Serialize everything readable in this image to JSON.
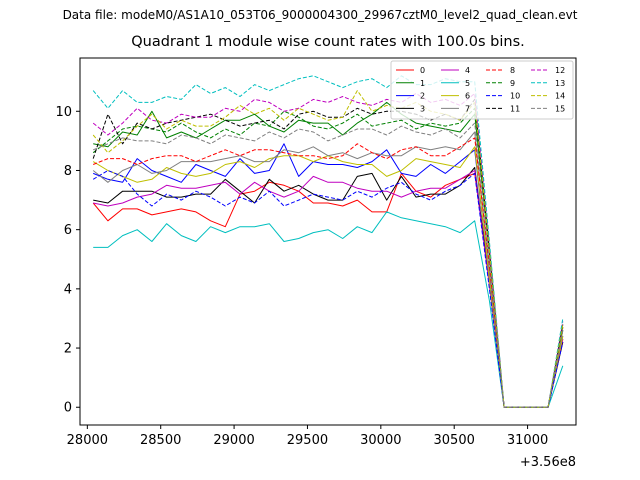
{
  "figure": {
    "suptitle": "Data file: modeM0/AS1A10_053T06_9000004300_29967cztM0_level2_quad_clean.evt"
  },
  "chart_data": {
    "type": "line",
    "title": "Quadrant 1 module wise count rates with 100.0s bins.",
    "xlabel": "",
    "ylabel": "",
    "x_offset_label": "+3.56e8",
    "x": [
      28040,
      28140,
      28240,
      28340,
      28440,
      28540,
      28640,
      28740,
      28840,
      28940,
      29040,
      29140,
      29240,
      29340,
      29440,
      29540,
      29640,
      29740,
      29840,
      29940,
      30040,
      30140,
      30240,
      30340,
      30440,
      30540,
      30640,
      30740,
      30840,
      30940,
      31040,
      31140,
      31240
    ],
    "xlim": [
      27950,
      31330
    ],
    "ylim": [
      -0.6,
      11.8
    ],
    "xticks": [
      28000,
      28500,
      29000,
      29500,
      30000,
      30500,
      31000
    ],
    "xtick_labels": [
      "28000",
      "28500",
      "29000",
      "29500",
      "30000",
      "30500",
      "31000"
    ],
    "yticks": [
      0,
      2,
      4,
      6,
      8,
      10
    ],
    "ytick_labels": [
      "0",
      "2",
      "4",
      "6",
      "8",
      "10"
    ],
    "grid": false,
    "legend_placement": "top-right",
    "series": [
      {
        "name": "0",
        "color": "#ff0000",
        "dash": "solid",
        "values": [
          6.9,
          6.3,
          6.7,
          6.7,
          6.5,
          6.6,
          6.7,
          6.6,
          6.3,
          6.1,
          7.2,
          7.3,
          7.6,
          7.5,
          7.3,
          6.9,
          6.9,
          6.8,
          7.0,
          6.6,
          6.6,
          7.9,
          7.3,
          7.1,
          7.5,
          7.7,
          7.9,
          4.3,
          0.0,
          0.0,
          0.0,
          0.0,
          2.3
        ]
      },
      {
        "name": "1",
        "color": "#008000",
        "dash": "solid",
        "values": [
          8.9,
          8.8,
          9.3,
          9.2,
          10.0,
          9.1,
          9.3,
          9.1,
          9.4,
          9.7,
          9.7,
          9.9,
          9.5,
          9.3,
          9.7,
          9.6,
          9.6,
          9.2,
          9.6,
          9.9,
          10.3,
          9.9,
          9.6,
          9.5,
          9.4,
          9.3,
          9.9,
          5.2,
          0.0,
          0.0,
          0.0,
          0.0,
          2.6
        ]
      },
      {
        "name": "2",
        "color": "#0000ff",
        "dash": "solid",
        "values": [
          7.9,
          7.7,
          7.6,
          8.4,
          8.0,
          7.8,
          7.6,
          8.2,
          8.0,
          7.8,
          8.4,
          7.9,
          8.0,
          8.9,
          7.8,
          8.3,
          8.2,
          8.2,
          8.1,
          8.3,
          8.7,
          7.9,
          7.8,
          8.2,
          7.9,
          8.3,
          8.7,
          4.3,
          0.0,
          0.0,
          0.0,
          0.0,
          2.4
        ]
      },
      {
        "name": "3",
        "color": "#000000",
        "dash": "solid",
        "values": [
          7.0,
          6.9,
          7.3,
          7.3,
          7.3,
          7.1,
          7.1,
          7.2,
          7.2,
          7.7,
          7.3,
          6.9,
          7.7,
          7.3,
          7.5,
          7.2,
          7.0,
          7.0,
          7.8,
          7.9,
          7.0,
          7.8,
          7.1,
          7.2,
          7.2,
          7.5,
          8.1,
          4.2,
          0.0,
          0.0,
          0.0,
          0.0,
          2.2
        ]
      },
      {
        "name": "4",
        "color": "#bf00bf",
        "dash": "solid",
        "values": [
          6.9,
          6.8,
          6.9,
          7.1,
          7.2,
          7.5,
          7.4,
          7.4,
          7.5,
          7.6,
          7.2,
          7.6,
          7.3,
          7.1,
          7.3,
          7.8,
          7.6,
          7.6,
          7.4,
          7.3,
          7.3,
          7.1,
          7.3,
          7.4,
          7.4,
          7.7,
          8.0,
          4.1,
          0.0,
          0.0,
          0.0,
          0.0,
          2.3
        ]
      },
      {
        "name": "5",
        "color": "#00bfbf",
        "dash": "solid",
        "values": [
          5.4,
          5.4,
          5.8,
          6.0,
          5.6,
          6.2,
          5.8,
          5.6,
          6.1,
          5.9,
          6.1,
          6.1,
          6.2,
          5.6,
          5.7,
          5.9,
          6.0,
          5.7,
          6.1,
          5.9,
          6.6,
          6.4,
          6.3,
          6.2,
          6.1,
          5.9,
          6.3,
          3.6,
          0.0,
          0.0,
          0.0,
          0.0,
          1.4
        ]
      },
      {
        "name": "6",
        "color": "#bfbf00",
        "dash": "solid",
        "values": [
          8.3,
          8.0,
          7.8,
          7.6,
          7.7,
          8.1,
          7.9,
          7.8,
          7.9,
          8.2,
          8.3,
          8.1,
          8.4,
          8.5,
          8.5,
          8.3,
          8.5,
          8.3,
          8.2,
          8.2,
          7.8,
          8.0,
          8.4,
          8.3,
          8.2,
          8.1,
          8.8,
          4.3,
          0.0,
          0.0,
          0.0,
          0.0,
          2.4
        ]
      },
      {
        "name": "7",
        "color": "#808080",
        "dash": "solid",
        "values": [
          8.0,
          7.6,
          8.0,
          8.2,
          7.9,
          8.0,
          8.3,
          8.3,
          8.3,
          8.4,
          8.5,
          8.3,
          8.3,
          8.7,
          8.6,
          8.8,
          8.5,
          8.6,
          8.4,
          8.6,
          8.5,
          8.5,
          8.8,
          8.7,
          8.8,
          8.7,
          9.3,
          4.6,
          0.0,
          0.0,
          0.0,
          0.0,
          2.6
        ]
      },
      {
        "name": "8",
        "color": "#ff0000",
        "dash": "dashed",
        "values": [
          8.2,
          8.4,
          8.4,
          8.2,
          8.4,
          8.5,
          8.5,
          8.3,
          8.5,
          8.7,
          8.5,
          8.7,
          8.7,
          8.6,
          8.5,
          8.5,
          8.4,
          8.5,
          8.9,
          8.6,
          8.4,
          8.7,
          8.8,
          8.5,
          8.5,
          8.8,
          9.1,
          4.8,
          0.0,
          0.0,
          0.0,
          0.0,
          2.7
        ]
      },
      {
        "name": "9",
        "color": "#008000",
        "dash": "dashed",
        "values": [
          8.6,
          9.0,
          9.4,
          9.5,
          9.4,
          9.3,
          9.6,
          9.3,
          9.1,
          9.4,
          9.2,
          9.6,
          9.5,
          10.0,
          9.8,
          9.5,
          9.4,
          9.6,
          9.9,
          9.5,
          9.6,
          9.7,
          9.4,
          9.6,
          9.5,
          9.6,
          10.1,
          5.2,
          0.0,
          0.0,
          0.0,
          0.0,
          2.7
        ]
      },
      {
        "name": "10",
        "color": "#0000ff",
        "dash": "dashed",
        "values": [
          7.7,
          8.0,
          7.8,
          7.2,
          6.8,
          7.2,
          7.0,
          7.3,
          7.1,
          6.8,
          7.1,
          6.9,
          7.3,
          6.8,
          7.0,
          7.2,
          7.1,
          7.0,
          7.3,
          7.1,
          7.4,
          7.6,
          7.2,
          7.0,
          7.3,
          7.5,
          7.9,
          4.0,
          0.0,
          0.0,
          0.0,
          0.0,
          2.2
        ]
      },
      {
        "name": "11",
        "color": "#000000",
        "dash": "dashed",
        "values": [
          8.4,
          9.9,
          8.9,
          9.6,
          9.4,
          9.6,
          9.7,
          9.8,
          9.9,
          9.7,
          9.5,
          9.6,
          9.7,
          9.4,
          9.9,
          10.0,
          9.8,
          9.8,
          10.1,
          9.9,
          10.0,
          10.0,
          9.9,
          9.7,
          9.9,
          9.7,
          10.4,
          5.3,
          0.0,
          0.0,
          0.0,
          0.0,
          2.8
        ]
      },
      {
        "name": "12",
        "color": "#bf00bf",
        "dash": "dashed",
        "values": [
          9.6,
          9.2,
          9.6,
          10.1,
          9.7,
          9.6,
          9.9,
          9.8,
          9.8,
          10.1,
          10.0,
          10.4,
          10.3,
          10.0,
          10.1,
          10.4,
          10.3,
          10.5,
          10.3,
          10.2,
          10.4,
          10.3,
          10.6,
          10.3,
          10.4,
          10.2,
          10.6,
          5.5,
          0.0,
          0.0,
          0.0,
          0.0,
          2.9
        ]
      },
      {
        "name": "13",
        "color": "#00bfbf",
        "dash": "dashed",
        "values": [
          10.7,
          10.1,
          10.7,
          10.3,
          10.3,
          10.5,
          10.4,
          10.9,
          10.6,
          10.8,
          10.5,
          10.9,
          10.7,
          10.9,
          11.1,
          11.2,
          11.0,
          10.8,
          11.0,
          11.1,
          10.8,
          11.2,
          10.9,
          10.9,
          11.1,
          11.0,
          11.0,
          5.6,
          0.0,
          0.0,
          0.0,
          0.0,
          3.0
        ]
      },
      {
        "name": "14",
        "color": "#bfbf00",
        "dash": "dashed",
        "values": [
          9.2,
          8.6,
          9.0,
          9.5,
          9.9,
          9.4,
          9.7,
          9.5,
          9.5,
          9.8,
          10.2,
          9.9,
          10.1,
          9.7,
          10.1,
          9.9,
          9.7,
          9.8,
          10.7,
          10.0,
          10.2,
          10.1,
          10.3,
          10.0,
          9.9,
          9.7,
          10.3,
          5.3,
          0.0,
          0.0,
          0.0,
          0.0,
          2.8
        ]
      },
      {
        "name": "15",
        "color": "#808080",
        "dash": "dashed",
        "values": [
          8.7,
          8.9,
          9.1,
          9.0,
          9.0,
          8.9,
          9.2,
          9.1,
          8.9,
          9.2,
          9.1,
          9.0,
          9.3,
          9.1,
          9.4,
          9.3,
          9.0,
          9.2,
          9.4,
          9.4,
          9.2,
          9.5,
          9.3,
          9.2,
          9.4,
          9.1,
          9.6,
          5.0,
          0.0,
          0.0,
          0.0,
          0.0,
          2.6
        ]
      }
    ]
  }
}
